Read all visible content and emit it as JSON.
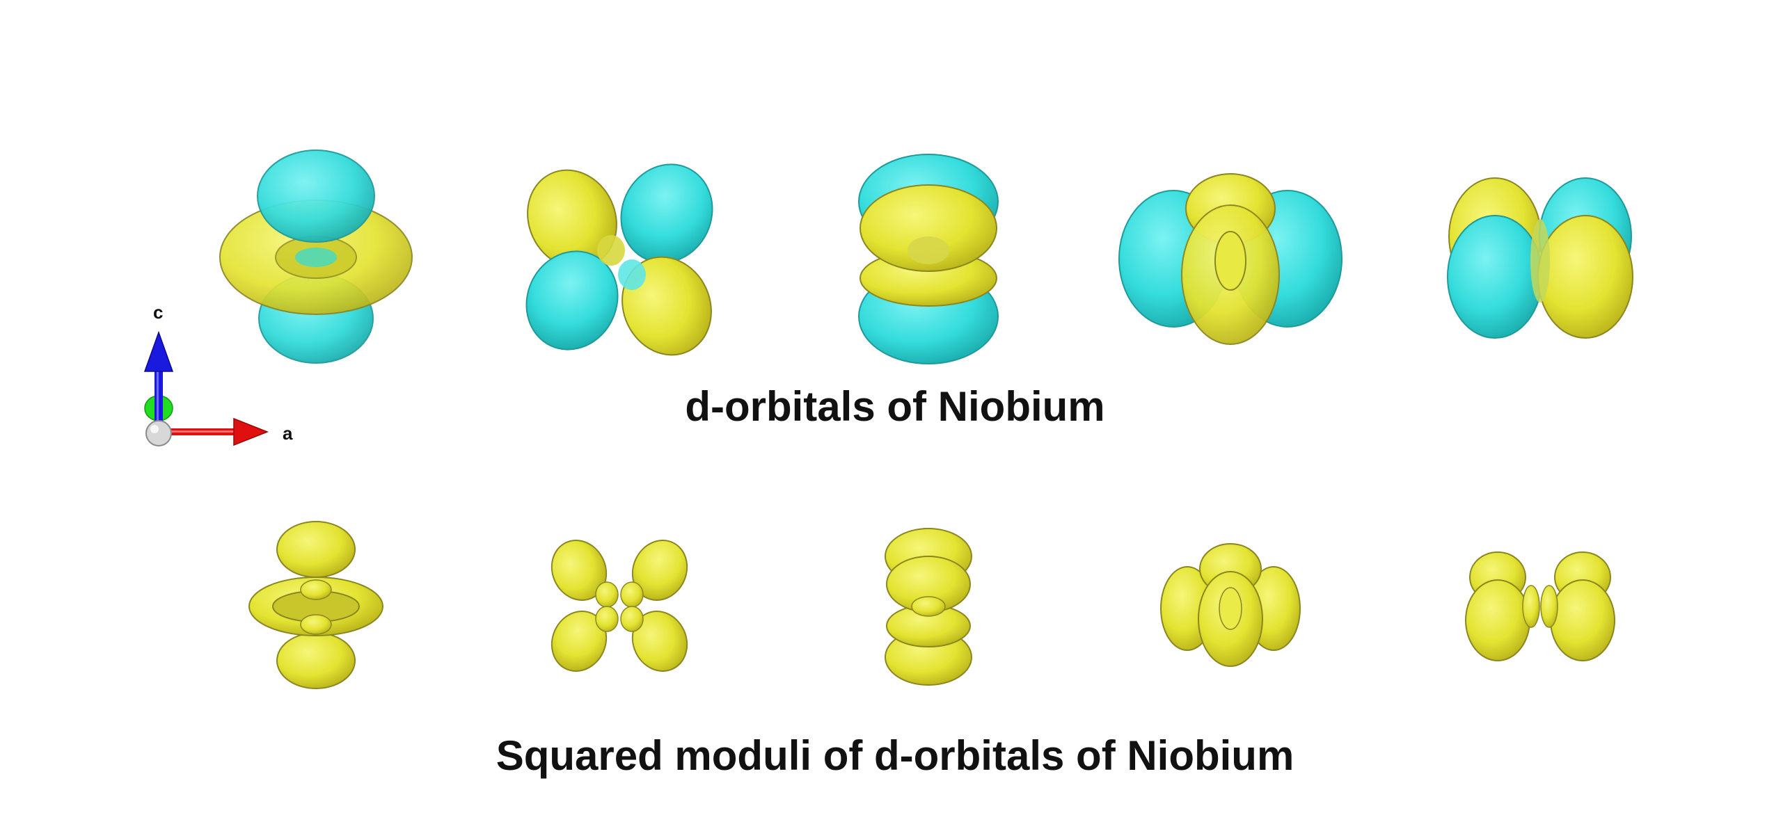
{
  "captions": {
    "top": "d-orbitals of Niobium",
    "bottom": "Squared moduli of d-orbitals of Niobium"
  },
  "axes": {
    "c_label": "c",
    "a_label": "a",
    "colors": {
      "c": "#1a1adf",
      "a": "#e01010",
      "b": "#22dd22",
      "origin": "#d8d8d8"
    }
  },
  "colors": {
    "positive_lobe": "#e6e632",
    "negative_lobe": "#34dede",
    "outline": "#6a6a22"
  },
  "orbitals_top": [
    {
      "shape": "dz2-style"
    },
    {
      "shape": "cloverleaf-diagonal"
    },
    {
      "shape": "stacked-domes"
    },
    {
      "shape": "side-lobes-front-ring"
    },
    {
      "shape": "paired-halves"
    }
  ],
  "orbitals_bottom": [
    {
      "shape": "dz2-squared"
    },
    {
      "shape": "cloverleaf-squared"
    },
    {
      "shape": "stacked-domes-squared"
    },
    {
      "shape": "side-lobes-squared"
    },
    {
      "shape": "paired-halves-squared"
    }
  ]
}
